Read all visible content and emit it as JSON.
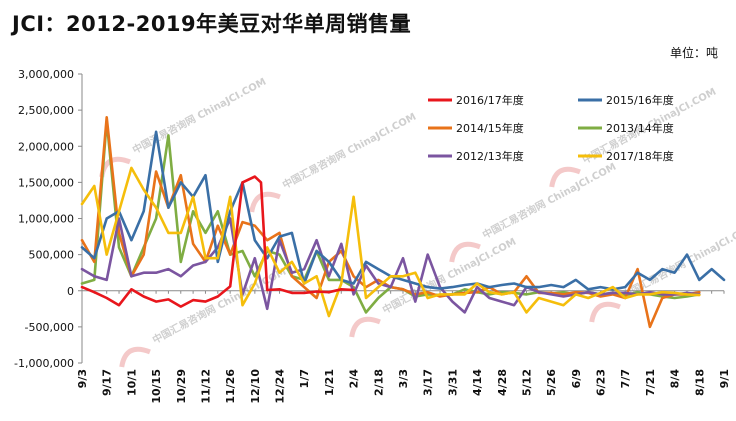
{
  "title": "JCI：2012-2019年美豆对华单周销售量",
  "unit_label": "单位：吨",
  "watermark": "中国汇易咨询网 ChinaJCI.COM",
  "chart_data": {
    "type": "line",
    "xlabel": "",
    "ylabel": "",
    "ylim": [
      -1000000,
      3000000
    ],
    "y_ticks": [
      3000000,
      2500000,
      2000000,
      1500000,
      1000000,
      500000,
      0,
      -500000,
      -1000000
    ],
    "y_tick_labels": [
      "3,000,000",
      "2,500,000",
      "2,000,000",
      "1,500,000",
      "1,000,000",
      "500,000",
      "0",
      "-500,000",
      "-1,000,000"
    ],
    "x_index_range": [
      0,
      52
    ],
    "x_tick_labels": [
      "9/3",
      "9/17",
      "10/1",
      "10/15",
      "10/29",
      "11/12",
      "11/26",
      "12/10",
      "12/24",
      "1/7",
      "1/21",
      "2/4",
      "2/18",
      "3/3",
      "3/17",
      "3/31",
      "4/14",
      "4/28",
      "5/12",
      "5/26",
      "6/9",
      "6/23",
      "7/7",
      "7/21",
      "8/4",
      "8/18",
      "9/1"
    ],
    "x_tick_positions": [
      0,
      2,
      4,
      6,
      8,
      10,
      12,
      14,
      16,
      18,
      20,
      22,
      24,
      26,
      28,
      30,
      32,
      34,
      36,
      38,
      40,
      42,
      44,
      46,
      48,
      50,
      52
    ],
    "legend_position": "top-right",
    "grid": false,
    "series": [
      {
        "name": "2016/17年度",
        "color": "#e8161c",
        "x": [
          0,
          1,
          2,
          3,
          4,
          5,
          6,
          7,
          8,
          9,
          10,
          11,
          12,
          13,
          14,
          14.5,
          15,
          16,
          17,
          18,
          19,
          20,
          21,
          22
        ],
        "values": [
          50000,
          -20000,
          -100000,
          -200000,
          20000,
          -80000,
          -150000,
          -120000,
          -220000,
          -130000,
          -150000,
          -80000,
          60000,
          1500000,
          1580000,
          1500000,
          10000,
          20000,
          -30000,
          -30000,
          -10000,
          -20000,
          20000,
          10000
        ]
      },
      {
        "name": "2015/16年度",
        "color": "#3a6fa6",
        "x": [
          0,
          1,
          2,
          3,
          4,
          5,
          6,
          7,
          8,
          9,
          10,
          11,
          12,
          13,
          14,
          15,
          16,
          17,
          18,
          19,
          20,
          21,
          22,
          23,
          24,
          25,
          26,
          27,
          28,
          29,
          30,
          31,
          32,
          33,
          34,
          35,
          36,
          37,
          38,
          39,
          40,
          41,
          42,
          43,
          44,
          45,
          46,
          47,
          48,
          49,
          50,
          51,
          52
        ],
        "values": [
          600000,
          450000,
          1000000,
          1100000,
          700000,
          1100000,
          2200000,
          1150000,
          1500000,
          1300000,
          1600000,
          400000,
          1100000,
          1500000,
          700000,
          450000,
          750000,
          800000,
          100000,
          550000,
          400000,
          150000,
          100000,
          400000,
          300000,
          200000,
          150000,
          100000,
          50000,
          30000,
          50000,
          80000,
          100000,
          50000,
          80000,
          100000,
          50000,
          50000,
          80000,
          50000,
          150000,
          20000,
          50000,
          20000,
          50000,
          250000,
          150000,
          300000,
          250000,
          500000,
          150000,
          300000,
          150000
        ]
      },
      {
        "name": "2014/15年度",
        "color": "#e8731a",
        "x": [
          0,
          1,
          2,
          3,
          4,
          5,
          6,
          7,
          8,
          9,
          10,
          11,
          12,
          13,
          14,
          15,
          16,
          17,
          18,
          19,
          20,
          21,
          22,
          23,
          24,
          25,
          26,
          27,
          28,
          29,
          30,
          31,
          32,
          33,
          34,
          35,
          36,
          37,
          38,
          39,
          40,
          41,
          42,
          43,
          44,
          45,
          46,
          47,
          48,
          49,
          50
        ],
        "values": [
          700000,
          400000,
          2400000,
          800000,
          200000,
          500000,
          1650000,
          1150000,
          1600000,
          650000,
          400000,
          900000,
          500000,
          950000,
          900000,
          700000,
          800000,
          200000,
          50000,
          -100000,
          400000,
          550000,
          200000,
          50000,
          150000,
          50000,
          20000,
          -50000,
          -20000,
          -80000,
          -50000,
          -30000,
          -20000,
          50000,
          -50000,
          -20000,
          200000,
          -30000,
          -30000,
          -50000,
          -20000,
          -30000,
          -80000,
          -50000,
          -100000,
          300000,
          -500000,
          -100000,
          -50000,
          -50000,
          -20000
        ]
      },
      {
        "name": "2013/14年度",
        "color": "#7fad43",
        "x": [
          0,
          1,
          2,
          3,
          4,
          5,
          6,
          7,
          8,
          9,
          10,
          11,
          12,
          13,
          14,
          15,
          16,
          17,
          18,
          19,
          20,
          21,
          22,
          23,
          24,
          25,
          26,
          27,
          28,
          29,
          30,
          31,
          32,
          33,
          34,
          35,
          36,
          37,
          38,
          39,
          40,
          41,
          42,
          43,
          44,
          45,
          46,
          47,
          48,
          49,
          50
        ],
        "values": [
          100000,
          150000,
          2350000,
          600000,
          200000,
          600000,
          1000000,
          2150000,
          400000,
          1100000,
          800000,
          1100000,
          500000,
          550000,
          200000,
          550000,
          500000,
          200000,
          150000,
          550000,
          150000,
          150000,
          50000,
          -300000,
          -100000,
          50000,
          20000,
          -80000,
          -50000,
          -60000,
          -50000,
          20000,
          -20000,
          -50000,
          -20000,
          -30000,
          -50000,
          -20000,
          -40000,
          -20000,
          -50000,
          -20000,
          -50000,
          -30000,
          -60000,
          -20000,
          -50000,
          -80000,
          -100000,
          -80000,
          -50000
        ]
      },
      {
        "name": "2012/13年度",
        "color": "#7b55a0",
        "x": [
          0,
          1,
          2,
          3,
          4,
          5,
          6,
          7,
          8,
          9,
          10,
          11,
          12,
          13,
          14,
          15,
          16,
          17,
          18,
          19,
          20,
          21,
          22,
          23,
          24,
          25,
          26,
          27,
          28,
          29,
          30,
          31,
          32,
          33,
          34,
          35,
          36,
          37,
          38,
          39,
          40,
          41,
          42,
          43,
          44,
          45,
          46,
          47,
          48,
          49,
          50
        ],
        "values": [
          300000,
          200000,
          150000,
          1000000,
          200000,
          250000,
          250000,
          300000,
          200000,
          350000,
          400000,
          600000,
          1000000,
          -50000,
          450000,
          -250000,
          700000,
          250000,
          300000,
          700000,
          200000,
          650000,
          -50000,
          350000,
          100000,
          50000,
          450000,
          -150000,
          500000,
          50000,
          -150000,
          -300000,
          50000,
          -100000,
          -150000,
          -200000,
          50000,
          -20000,
          -50000,
          -80000,
          -50000,
          -20000,
          -50000,
          -30000,
          -30000,
          -50000,
          -20000,
          -50000,
          -50000,
          -30000,
          -50000
        ]
      },
      {
        "name": "2017/18年度",
        "color": "#f5be0b",
        "x": [
          0,
          1,
          2,
          3,
          4,
          5,
          6,
          7,
          8,
          9,
          10,
          11,
          12,
          13,
          14,
          15,
          16,
          17,
          18,
          19,
          20,
          21,
          22,
          23,
          24,
          25,
          26,
          27,
          28,
          29,
          30,
          31,
          32,
          33,
          34,
          35,
          36,
          37,
          38,
          39,
          40,
          41,
          42,
          43,
          44,
          45,
          46,
          47,
          48,
          49,
          50
        ],
        "values": [
          1200000,
          1450000,
          500000,
          1100000,
          1700000,
          1400000,
          1150000,
          800000,
          800000,
          1300000,
          450000,
          450000,
          1300000,
          -200000,
          100000,
          600000,
          250000,
          400000,
          100000,
          200000,
          -350000,
          100000,
          1300000,
          -100000,
          50000,
          200000,
          200000,
          250000,
          -100000,
          -50000,
          -50000,
          -50000,
          100000,
          -20000,
          -50000,
          -20000,
          -300000,
          -100000,
          -150000,
          -200000,
          -50000,
          -100000,
          -30000,
          50000,
          -100000,
          -50000,
          -50000,
          -20000,
          -30000,
          -50000,
          -60000
        ]
      }
    ]
  }
}
